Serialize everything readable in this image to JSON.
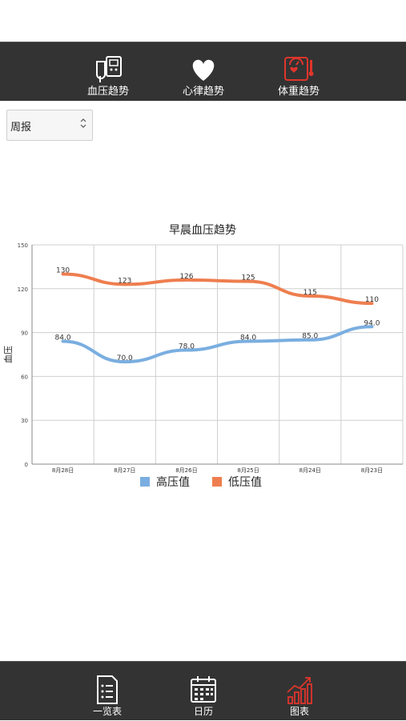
{
  "top_nav": {
    "items": [
      {
        "label": "血压趋势",
        "icon": "blood-pressure-monitor-icon"
      },
      {
        "label": "心律趋势",
        "icon": "heart-icon"
      },
      {
        "label": "体重趋势",
        "icon": "weight-scale-icon"
      }
    ],
    "active_index": 2,
    "active_color": "#e0352b"
  },
  "period_select": {
    "value": "周报"
  },
  "chart_data": {
    "type": "line",
    "title": "早晨血压趋势",
    "ylabel": "血压",
    "xlabel": "",
    "categories": [
      "8月28日",
      "8月27日",
      "8月26日",
      "8月25日",
      "8月24日",
      "8月23日"
    ],
    "ylim": [
      0,
      150
    ],
    "yticks": [
      0,
      30,
      60,
      90,
      120,
      150
    ],
    "grid": true,
    "legend_position": "bottom",
    "series": [
      {
        "name": "高压值",
        "color": "#7aaee0",
        "values": [
          84.0,
          70.0,
          78.0,
          84.0,
          85.0,
          94.0
        ],
        "labels": [
          "84.0",
          "70.0",
          "78.0",
          "84.0",
          "85.0",
          "94.0"
        ]
      },
      {
        "name": "低压值",
        "color": "#ee7e4f",
        "values": [
          130,
          123,
          126,
          125,
          115,
          110
        ],
        "labels": [
          "130",
          "123",
          "126",
          "125",
          "115",
          "110"
        ]
      }
    ]
  },
  "bottom_nav": {
    "items": [
      {
        "label": "一览表",
        "icon": "list-icon"
      },
      {
        "label": "日历",
        "icon": "calendar-icon"
      },
      {
        "label": "图表",
        "icon": "chart-icon"
      }
    ],
    "active_index": 2,
    "active_color": "#e0352b"
  }
}
